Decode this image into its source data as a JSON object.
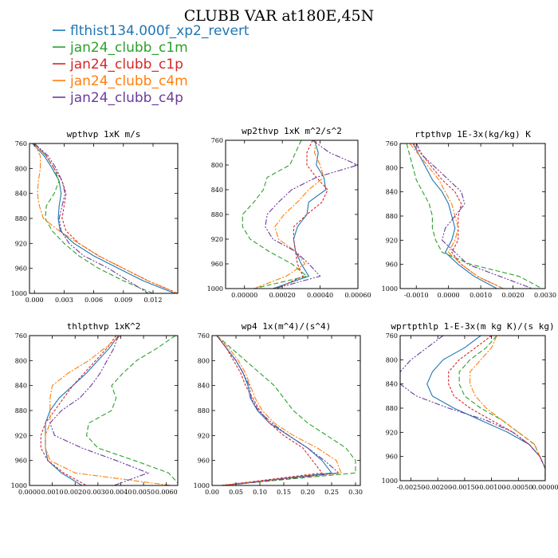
{
  "figure": {
    "title": "CLUBB VAR at180E,45N"
  },
  "legend": [
    {
      "name": "flthist134.000f_xp2_revert",
      "color": "#1f77b4"
    },
    {
      "name": "jan24_clubb_c1m",
      "color": "#2ca02c"
    },
    {
      "name": "jan24_clubb_c1p",
      "color": "#d62728"
    },
    {
      "name": "jan24_clubb_c4m",
      "color": "#ff7f0e"
    },
    {
      "name": "jan24_clubb_c4p",
      "color": "#6a3d9a"
    }
  ],
  "chart_data": [
    {
      "type": "line",
      "title": "wpthvp  1xK m/s",
      "xlim": [
        -0.0005,
        0.0145
      ],
      "ylim": [
        760,
        1000
      ],
      "xticks": [
        "0.000",
        "0.003",
        "0.006",
        "0.009",
        "0.012"
      ],
      "xtick_values": [
        0,
        0.003,
        0.006,
        0.009,
        0.012
      ],
      "yticks": [
        760,
        800,
        840,
        880,
        920,
        960,
        1000
      ],
      "y": [
        760,
        780,
        800,
        820,
        840,
        860,
        880,
        900,
        920,
        940,
        960,
        980,
        1000
      ],
      "series": [
        {
          "name": "flthist134.000f_xp2_revert",
          "values": [
            -0.0002,
            0.001,
            0.0018,
            0.0025,
            0.0027,
            0.0025,
            0.0024,
            0.0026,
            0.004,
            0.006,
            0.0085,
            0.011,
            0.0142
          ]
        },
        {
          "name": "jan24_clubb_c1m",
          "values": [
            0.0,
            0.0012,
            0.002,
            0.0025,
            0.002,
            0.0012,
            0.0011,
            0.0018,
            0.003,
            0.0045,
            0.0065,
            0.009,
            0.012
          ]
        },
        {
          "name": "jan24_clubb_c1p",
          "values": [
            0.0,
            0.0012,
            0.002,
            0.0028,
            0.0032,
            0.003,
            0.0028,
            0.0032,
            0.0045,
            0.0065,
            0.009,
            0.0115,
            0.0145
          ]
        },
        {
          "name": "jan24_clubb_c4m",
          "values": [
            0.0,
            0.0006,
            0.0006,
            0.0004,
            0.0003,
            0.0005,
            0.0009,
            0.0025,
            0.0045,
            0.0065,
            0.009,
            0.0115,
            0.0145
          ]
        },
        {
          "name": "jan24_clubb_c4p",
          "values": [
            0.0,
            0.0014,
            0.0022,
            0.0028,
            0.0031,
            0.0028,
            0.0025,
            0.0027,
            0.0035,
            0.005,
            0.0075,
            0.0095,
            0.0115
          ]
        }
      ]
    },
    {
      "type": "line",
      "title": "wp2thvp  1xK m^2/s^2",
      "xlim": [
        -0.0001,
        0.0006
      ],
      "ylim": [
        760,
        1000
      ],
      "xticks": [
        "0.00000",
        "0.00020",
        "0.00040",
        "0.00060"
      ],
      "xtick_values": [
        0,
        0.0002,
        0.0004,
        0.0006
      ],
      "yticks": [
        760,
        800,
        840,
        880,
        920,
        960,
        1000
      ],
      "y": [
        760,
        780,
        800,
        820,
        840,
        860,
        880,
        900,
        920,
        940,
        960,
        980,
        1000
      ],
      "series": [
        {
          "name": "flthist134.000f_xp2_revert",
          "values": [
            0.00037,
            0.00039,
            0.00038,
            0.00042,
            0.00043,
            0.00034,
            0.00033,
            0.00028,
            0.00026,
            0.00027,
            0.0003,
            0.00034,
            0.00015
          ]
        },
        {
          "name": "jan24_clubb_c1m",
          "values": [
            0.0003,
            0.00027,
            0.00024,
            0.00012,
            0.0001,
            5e-05,
            -1e-05,
            -1e-05,
            3e-05,
            0.00013,
            0.00025,
            0.00033,
            5e-05
          ]
        },
        {
          "name": "jan24_clubb_c1p",
          "values": [
            0.00036,
            0.00033,
            0.00033,
            0.00038,
            0.00044,
            0.00041,
            0.00033,
            0.00026,
            0.00026,
            0.00027,
            0.00028,
            0.00031,
            0.00017
          ]
        },
        {
          "name": "jan24_clubb_c4m",
          "values": [
            0.00038,
            0.00037,
            0.0004,
            0.00042,
            0.00034,
            0.00028,
            0.00021,
            0.00016,
            0.00018,
            0.00027,
            0.00032,
            0.00022,
            5e-05
          ]
        },
        {
          "name": "jan24_clubb_c4p",
          "values": [
            0.00036,
            0.00045,
            0.0006,
            0.00038,
            0.00025,
            0.00018,
            0.00012,
            0.00011,
            0.00015,
            0.00027,
            0.00034,
            0.0004,
            0.00016
          ]
        }
      ]
    },
    {
      "type": "line",
      "title": "rtpthvp  1E-3x(kg/kg) K",
      "xlim": [
        -0.0015,
        0.003
      ],
      "ylim": [
        760,
        1000
      ],
      "xticks": [
        "-0.0010",
        "0.0000",
        "0.0010",
        "0.0020",
        "0.0030"
      ],
      "xtick_values": [
        -0.001,
        0,
        0.001,
        0.002,
        0.003
      ],
      "yticks": [
        760,
        800,
        840,
        880,
        920,
        960,
        1000
      ],
      "y": [
        760,
        780,
        800,
        820,
        840,
        860,
        880,
        900,
        920,
        940,
        960,
        980,
        1000
      ],
      "series": [
        {
          "name": "flthist134.000f_xp2_revert",
          "values": [
            -0.0011,
            -0.0009,
            -0.0007,
            -0.0005,
            -0.0002,
            0.0,
            0.0001,
            0.0002,
            0.0001,
            -0.0001,
            0.0003,
            0.0008,
            0.0015
          ]
        },
        {
          "name": "jan24_clubb_c1m",
          "values": [
            -0.0013,
            -0.0012,
            -0.0011,
            -0.001,
            -0.0008,
            -0.0006,
            -0.0005,
            -0.0005,
            -0.0004,
            -0.0002,
            0.0007,
            0.0022,
            0.0029
          ]
        },
        {
          "name": "jan24_clubb_c1p",
          "values": [
            -0.0011,
            -0.0008,
            -0.0005,
            -0.0002,
            0.0002,
            0.0004,
            0.0003,
            0.0003,
            0.0003,
            0.0001,
            0.0004,
            0.0009,
            0.0017
          ]
        },
        {
          "name": "jan24_clubb_c4m",
          "values": [
            -0.0012,
            -0.0009,
            -0.0006,
            -0.0003,
            -0.0001,
            0.0001,
            0.0002,
            0.0003,
            0.0002,
            0.0,
            0.0004,
            0.0009,
            0.0017
          ]
        },
        {
          "name": "jan24_clubb_c4p",
          "values": [
            -0.001,
            -0.0008,
            -0.0004,
            0.0,
            0.0004,
            0.0005,
            0.0002,
            -0.0001,
            -0.0002,
            0.0002,
            0.0006,
            0.0016,
            0.0026
          ]
        }
      ]
    },
    {
      "type": "line",
      "title": "thlpthvp  1xK^2",
      "xlim": [
        0,
        0.0065
      ],
      "ylim": [
        760,
        1000
      ],
      "xticks": [
        "0.0000",
        "0.0010",
        "0.0020",
        "0.0030",
        "0.0040",
        "0.0050",
        "0.0060"
      ],
      "xtick_values": [
        0,
        0.001,
        0.002,
        0.003,
        0.004,
        0.005,
        0.006
      ],
      "yticks": [
        760,
        800,
        840,
        880,
        920,
        960,
        1000
      ],
      "y": [
        760,
        780,
        800,
        820,
        840,
        860,
        880,
        900,
        920,
        940,
        960,
        980,
        1000
      ],
      "series": [
        {
          "name": "flthist134.000f_xp2_revert",
          "values": [
            0.0039,
            0.0035,
            0.003,
            0.0025,
            0.0019,
            0.0013,
            0.0009,
            0.0007,
            0.0007,
            0.0007,
            0.0008,
            0.0014,
            0.0023
          ]
        },
        {
          "name": "jan24_clubb_c1m",
          "values": [
            0.0064,
            0.0056,
            0.0047,
            0.0041,
            0.0036,
            0.0038,
            0.0036,
            0.0026,
            0.0025,
            0.003,
            0.0046,
            0.0061,
            0.0066
          ]
        },
        {
          "name": "jan24_clubb_c1p",
          "values": [
            0.0038,
            0.0034,
            0.0029,
            0.0024,
            0.0019,
            0.0015,
            0.0011,
            0.0007,
            0.0005,
            0.0005,
            0.0008,
            0.0015,
            0.0025
          ]
        },
        {
          "name": "jan24_clubb_c4m",
          "values": [
            0.004,
            0.0033,
            0.0026,
            0.0017,
            0.001,
            0.0009,
            0.0009,
            0.0009,
            0.0007,
            0.0007,
            0.0009,
            0.002,
            0.0062
          ]
        },
        {
          "name": "jan24_clubb_c4p",
          "values": [
            0.0039,
            0.0037,
            0.0034,
            0.0031,
            0.0027,
            0.0022,
            0.0014,
            0.0009,
            0.0011,
            0.0023,
            0.0038,
            0.0052,
            0.0037
          ]
        }
      ]
    },
    {
      "type": "line",
      "title": "wp4  1x(m^4)/(s^4)",
      "xlim": [
        0,
        0.31
      ],
      "ylim": [
        760,
        1000
      ],
      "xticks": [
        "0.00",
        "0.05",
        "0.10",
        "0.15",
        "0.20",
        "0.25",
        "0.30"
      ],
      "xtick_values": [
        0,
        0.05,
        0.1,
        0.15,
        0.2,
        0.25,
        0.3
      ],
      "yticks": [
        760,
        800,
        840,
        880,
        920,
        960,
        1000
      ],
      "y": [
        760,
        780,
        800,
        820,
        840,
        860,
        880,
        900,
        920,
        940,
        960,
        980,
        1000
      ],
      "series": [
        {
          "name": "flthist134.000f_xp2_revert",
          "values": [
            0.01,
            0.03,
            0.05,
            0.065,
            0.075,
            0.08,
            0.095,
            0.12,
            0.16,
            0.2,
            0.23,
            0.25,
            0.02
          ]
        },
        {
          "name": "jan24_clubb_c1m",
          "values": [
            0.01,
            0.04,
            0.07,
            0.1,
            0.13,
            0.15,
            0.17,
            0.2,
            0.24,
            0.28,
            0.3,
            0.3,
            0.02
          ]
        },
        {
          "name": "jan24_clubb_c1p",
          "values": [
            0.01,
            0.03,
            0.045,
            0.06,
            0.07,
            0.085,
            0.1,
            0.12,
            0.15,
            0.19,
            0.21,
            0.23,
            0.02
          ]
        },
        {
          "name": "jan24_clubb_c4m",
          "values": [
            0.01,
            0.035,
            0.055,
            0.07,
            0.08,
            0.09,
            0.105,
            0.13,
            0.17,
            0.22,
            0.26,
            0.27,
            0.02
          ]
        },
        {
          "name": "jan24_clubb_c4p",
          "values": [
            0.01,
            0.03,
            0.05,
            0.065,
            0.078,
            0.082,
            0.097,
            0.125,
            0.16,
            0.2,
            0.235,
            0.265,
            0.03
          ]
        }
      ]
    },
    {
      "type": "line",
      "title": "wprtpthlp  1-E-3x(m kg K)/(s kg)",
      "xlim": [
        -0.0027,
        0.0
      ],
      "ylim": [
        760,
        1000
      ],
      "xticks": [
        "-0.00250",
        "-0.00200",
        "-0.00150",
        "-0.00100",
        "-0.00050",
        "0.00000"
      ],
      "xtick_values": [
        -0.0025,
        -0.002,
        -0.0015,
        -0.001,
        -0.0005,
        0.0
      ],
      "yticks": [
        760,
        800,
        840,
        880,
        920,
        960,
        1000
      ],
      "y": [
        760,
        780,
        800,
        820,
        840,
        860,
        880,
        900,
        920,
        940,
        960,
        980,
        1000
      ],
      "series": [
        {
          "name": "flthist134.000f_xp2_revert",
          "values": [
            -0.0012,
            -0.0015,
            -0.0019,
            -0.0021,
            -0.0022,
            -0.0021,
            -0.0017,
            -0.0012,
            -0.0007,
            -0.0003,
            -0.0001,
            0.0,
            0.0
          ]
        },
        {
          "name": "jan24_clubb_c1m",
          "values": [
            -0.0009,
            -0.0011,
            -0.0014,
            -0.0016,
            -0.0016,
            -0.0015,
            -0.0012,
            -0.0008,
            -0.0005,
            -0.0002,
            -0.0001,
            0.0,
            0.0
          ]
        },
        {
          "name": "jan24_clubb_c1p",
          "values": [
            -0.001,
            -0.0013,
            -0.0016,
            -0.0018,
            -0.0018,
            -0.0017,
            -0.0014,
            -0.001,
            -0.0006,
            -0.0003,
            -0.0001,
            0.0,
            0.0
          ]
        },
        {
          "name": "jan24_clubb_c4m",
          "values": [
            -0.0009,
            -0.001,
            -0.0012,
            -0.0014,
            -0.0014,
            -0.0013,
            -0.0011,
            -0.0008,
            -0.0005,
            -0.0002,
            -0.0001,
            0.0,
            0.0
          ]
        },
        {
          "name": "jan24_clubb_c4p",
          "values": [
            -0.0019,
            -0.0022,
            -0.0025,
            -0.0027,
            -0.0027,
            -0.0024,
            -0.0018,
            -0.0011,
            -0.0006,
            -0.0003,
            -0.0001,
            0.0,
            0.0
          ]
        }
      ]
    }
  ]
}
